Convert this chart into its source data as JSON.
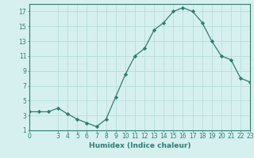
{
  "x": [
    0,
    1,
    2,
    3,
    4,
    5,
    6,
    7,
    8,
    9,
    10,
    11,
    12,
    13,
    14,
    15,
    16,
    17,
    18,
    19,
    20,
    21,
    22,
    23
  ],
  "y": [
    3.5,
    3.5,
    3.5,
    4.0,
    3.2,
    2.5,
    2.0,
    1.5,
    2.5,
    5.5,
    8.5,
    11.0,
    12.0,
    14.5,
    15.5,
    17.0,
    17.5,
    17.0,
    15.5,
    13.0,
    11.0,
    10.5,
    8.0,
    7.5
  ],
  "line_color": "#2e7d72",
  "marker": "D",
  "marker_size": 2.2,
  "bg_color": "#d6f0ef",
  "grid_color": "#b8ddd9",
  "xlabel": "Humidex (Indice chaleur)",
  "xlim": [
    0,
    23
  ],
  "ylim": [
    1,
    18
  ],
  "xticks": [
    0,
    3,
    4,
    5,
    6,
    7,
    8,
    9,
    10,
    11,
    12,
    13,
    14,
    15,
    16,
    17,
    18,
    19,
    20,
    21,
    22,
    23
  ],
  "yticks": [
    1,
    3,
    5,
    7,
    9,
    11,
    13,
    15,
    17
  ],
  "tick_fontsize": 5.5,
  "xlabel_fontsize": 6.5,
  "tick_color": "#2e7d72",
  "axis_color": "#2e7d72",
  "linewidth": 0.9
}
